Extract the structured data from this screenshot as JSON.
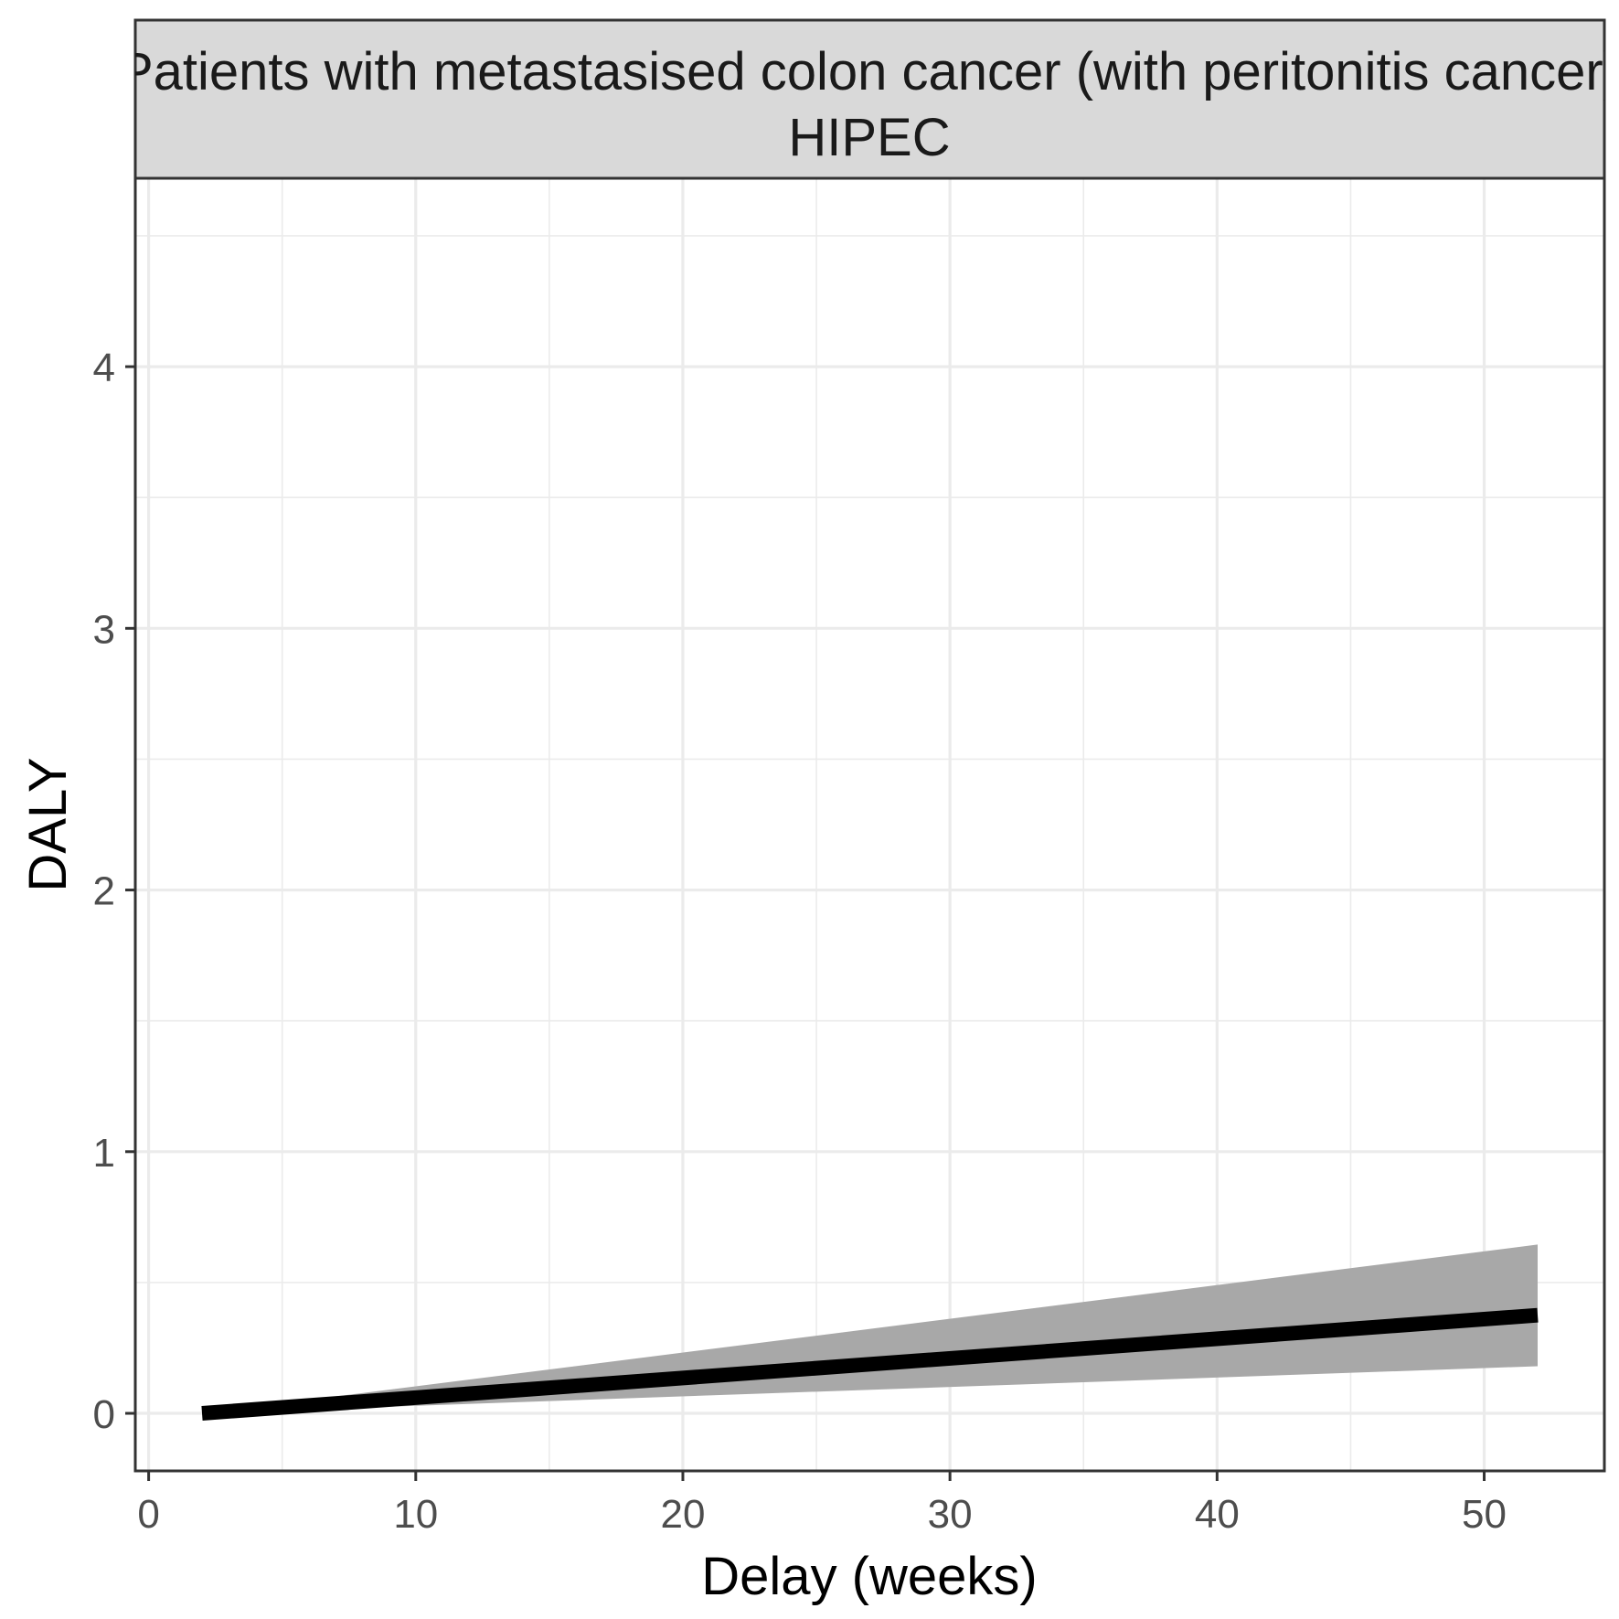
{
  "chart_data": {
    "type": "line",
    "strip_label_line1": "Patients with metastasised colon cancer (with peritonitis cancer)",
    "strip_label_line2": "HIPEC",
    "xlabel": "Delay (weeks)",
    "ylabel": "DALY",
    "xlim": [
      -0.5,
      54.5
    ],
    "ylim": [
      -0.22,
      4.72
    ],
    "x_ticks": [
      0,
      10,
      20,
      30,
      40,
      50
    ],
    "x_tick_labels": [
      "0",
      "10",
      "20",
      "30",
      "40",
      "50"
    ],
    "x_minor_ticks": [
      5,
      15,
      25,
      35,
      45
    ],
    "y_ticks": [
      0,
      1,
      2,
      3,
      4
    ],
    "y_tick_labels": [
      "0",
      "1",
      "2",
      "3",
      "4"
    ],
    "y_minor_ticks": [
      0.5,
      1.5,
      2.5,
      3.5,
      4.5
    ],
    "grid": true,
    "legend": "none",
    "series": [
      {
        "x": [
          2,
          52
        ],
        "y": [
          0.0,
          0.375
        ],
        "lower": [
          0.0,
          0.18
        ],
        "upper": [
          0.0,
          0.645
        ],
        "line_color": "#000000",
        "band_color": "#a8a8a8"
      }
    ],
    "colors": {
      "strip_background": "#d9d9d9",
      "panel_border": "#333333",
      "grid": "#ebebeb"
    }
  }
}
